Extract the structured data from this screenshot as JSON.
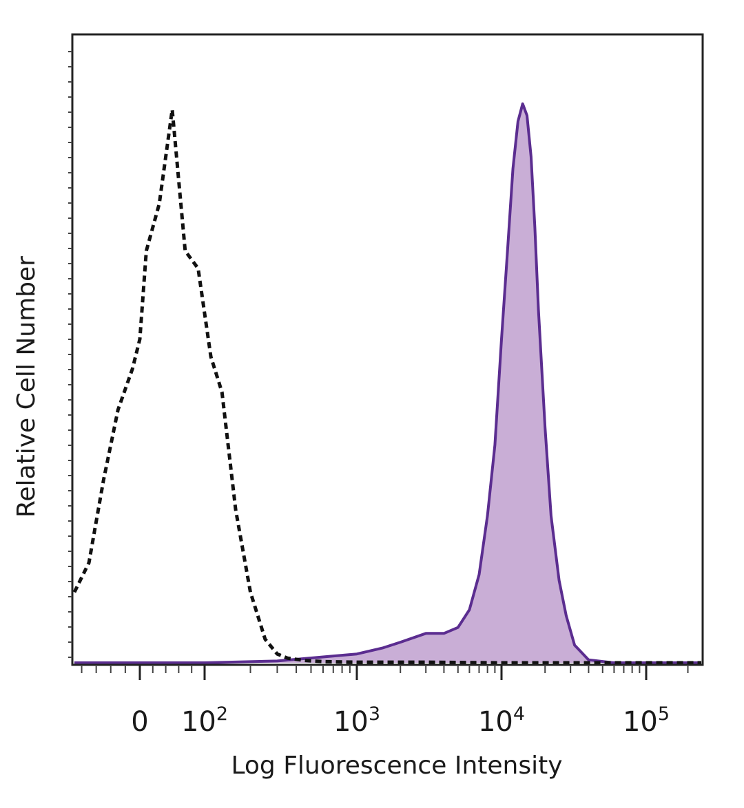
{
  "chart_data": {
    "type": "area",
    "title": "",
    "xlabel": "Log Fluorescence Intensity",
    "ylabel": "Relative Cell Number",
    "x_scale": "biexponential",
    "xlim": [
      -90,
      250000
    ],
    "ylim": [
      0,
      100
    ],
    "grid": false,
    "legend": "none",
    "x_ticks": [
      {
        "value": 0,
        "base": "0",
        "exp": ""
      },
      {
        "value": 100,
        "base": "10",
        "exp": "2"
      },
      {
        "value": 1000,
        "base": "10",
        "exp": "3"
      },
      {
        "value": 10000,
        "base": "10",
        "exp": "4"
      },
      {
        "value": 100000,
        "base": "10",
        "exp": "5"
      }
    ],
    "series": [
      {
        "style": "dashed",
        "color": "#111111",
        "fill": "none",
        "x": [
          -90,
          -70,
          -50,
          -30,
          -10,
          0,
          10,
          30,
          50,
          70,
          90,
          110,
          130,
          160,
          200,
          250,
          300,
          350,
          450,
          600,
          1000,
          3000,
          10000,
          100000,
          250000
        ],
        "y": [
          12,
          17,
          31,
          43,
          50,
          55,
          70,
          78,
          94,
          70,
          67,
          52,
          46,
          26,
          12,
          4,
          1.5,
          0.8,
          0.4,
          0.2,
          0.1,
          0.1,
          0,
          0,
          0
        ]
      },
      {
        "style": "solid",
        "color": "#5b2d90",
        "fill": "#c9aed6",
        "x": [
          -90,
          0,
          100,
          300,
          600,
          1000,
          1500,
          2000,
          3000,
          4000,
          5000,
          6000,
          7000,
          8000,
          9000,
          10000,
          11000,
          12000,
          13000,
          14000,
          15000,
          16000,
          17000,
          18000,
          20000,
          22000,
          25000,
          28000,
          32000,
          40000,
          60000,
          250000
        ],
        "y": [
          0,
          0,
          0,
          0.3,
          1,
          1.5,
          2.5,
          3.5,
          5,
          5,
          6,
          9,
          15,
          25,
          37,
          55,
          70,
          84,
          92,
          95,
          93,
          86,
          74,
          60,
          40,
          25,
          14,
          8,
          3,
          0.5,
          0,
          0
        ]
      }
    ]
  }
}
